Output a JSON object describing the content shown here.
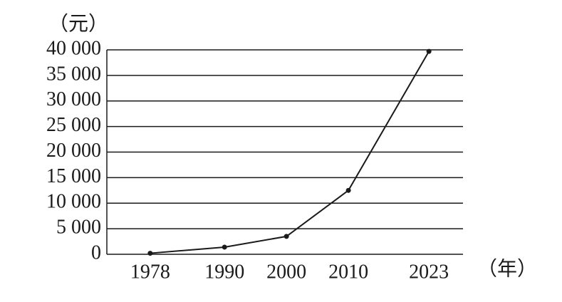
{
  "chart_data": {
    "type": "line",
    "y_label": "（元）",
    "x_label": "（年）",
    "x": [
      1978,
      1990,
      2000,
      2010,
      2023
    ],
    "series": [
      {
        "color": "#1a1a1a",
        "values": [
          200,
          1400,
          3500,
          12500,
          39700
        ]
      }
    ],
    "xlim": [
      1971,
      2028.5
    ],
    "xticks": [
      1978,
      1990,
      2000,
      2010,
      2023
    ],
    "ylim": [
      0,
      40000
    ],
    "yticks": [
      0,
      {
        "value": 5000,
        "label": "5 000"
      },
      {
        "value": 10000,
        "label": "10 000"
      },
      {
        "value": 15000,
        "label": "15 000"
      },
      {
        "value": 20000,
        "label": "20 000"
      },
      {
        "value": 25000,
        "label": "25 000"
      },
      {
        "value": 30000,
        "label": "30 000"
      },
      {
        "value": 35000,
        "label": "35 000"
      },
      {
        "value": 40000,
        "label": "40 000"
      }
    ],
    "grid": true
  }
}
